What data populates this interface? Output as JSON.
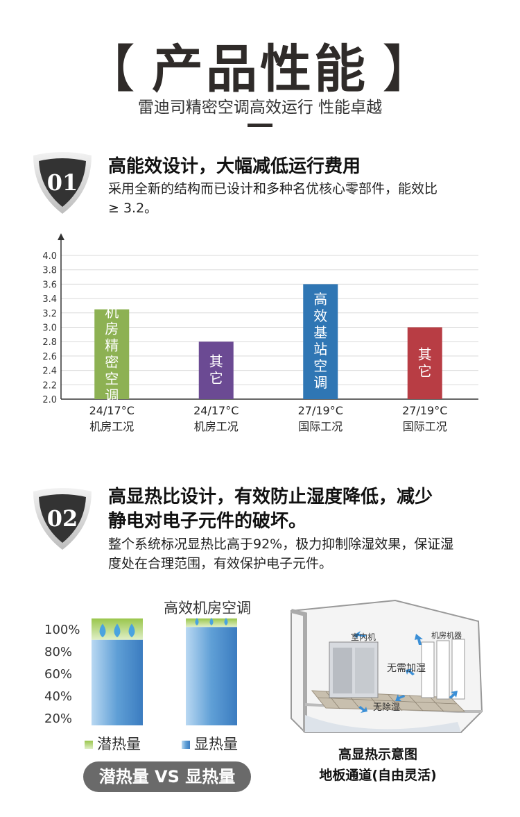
{
  "header": {
    "bracket_left": "【",
    "title": "产品性能",
    "bracket_right": "】",
    "subtitle": "雷迪司精密空调高效运行 性能卓越"
  },
  "section1": {
    "badge": "01",
    "title": "高能效设计，大幅减低运行费用",
    "desc_line1": "采用全新的结构而已设计和多种名优核心零部件，能效比",
    "desc_line2": "≥ 3.2。"
  },
  "chart_data": {
    "type": "bar",
    "categories": [
      "24/17°C 机房工况",
      "24/17°C 机房工况",
      "27/19°C 国际工况",
      "27/19°C 国际工况"
    ],
    "category_lines": [
      [
        "24/17°C",
        "机房工况"
      ],
      [
        "24/17°C",
        "机房工况"
      ],
      [
        "27/19°C",
        "国际工况"
      ],
      [
        "27/19°C",
        "国际工况"
      ]
    ],
    "values": [
      3.25,
      2.8,
      3.6,
      3.0
    ],
    "bar_labels": [
      "机房精密空调",
      "其它",
      "高效基站空调",
      "其它"
    ],
    "colors": [
      "#8db153",
      "#6b4a93",
      "#2f76b4",
      "#b83d44"
    ],
    "ylim": [
      2.0,
      4.0
    ],
    "yticks": [
      "2.0",
      "2.2",
      "2.4",
      "2.6",
      "2.8",
      "3.0",
      "3.2",
      "3.4",
      "3.6",
      "3.8",
      "4.0"
    ],
    "grid": true
  },
  "section2": {
    "badge": "02",
    "title_line1": "高显热比设计，有效防止湿度降低，减少",
    "title_line2": "静电对电子元件的破坏。",
    "desc_line1": "整个系统标况显热比高于92%，极力抑制除湿效果，保证湿",
    "desc_line2": "度处在合理范围，有效保护电子元件。"
  },
  "heat_chart": {
    "right_title": "高效机房空调",
    "yticks": [
      "100%",
      "80%",
      "60%",
      "40%",
      "20%"
    ],
    "bar1_latent_fraction": 0.2,
    "bar2_latent_fraction": 0.08,
    "legend_latent": "潜热量",
    "legend_sensible": "显热量",
    "pill": "潜热量 VS 显热量",
    "latent_color": "#9ac64c",
    "sensible_color": "#5f9fd6"
  },
  "illustration": {
    "label_indoor": "室内机",
    "label_room": "机房机器",
    "label_no_humid": "无需加湿",
    "label_no_dehumid": "无除湿",
    "caption_line1": "高显热示意图",
    "caption_line2": "地板通道(自由灵活)"
  }
}
